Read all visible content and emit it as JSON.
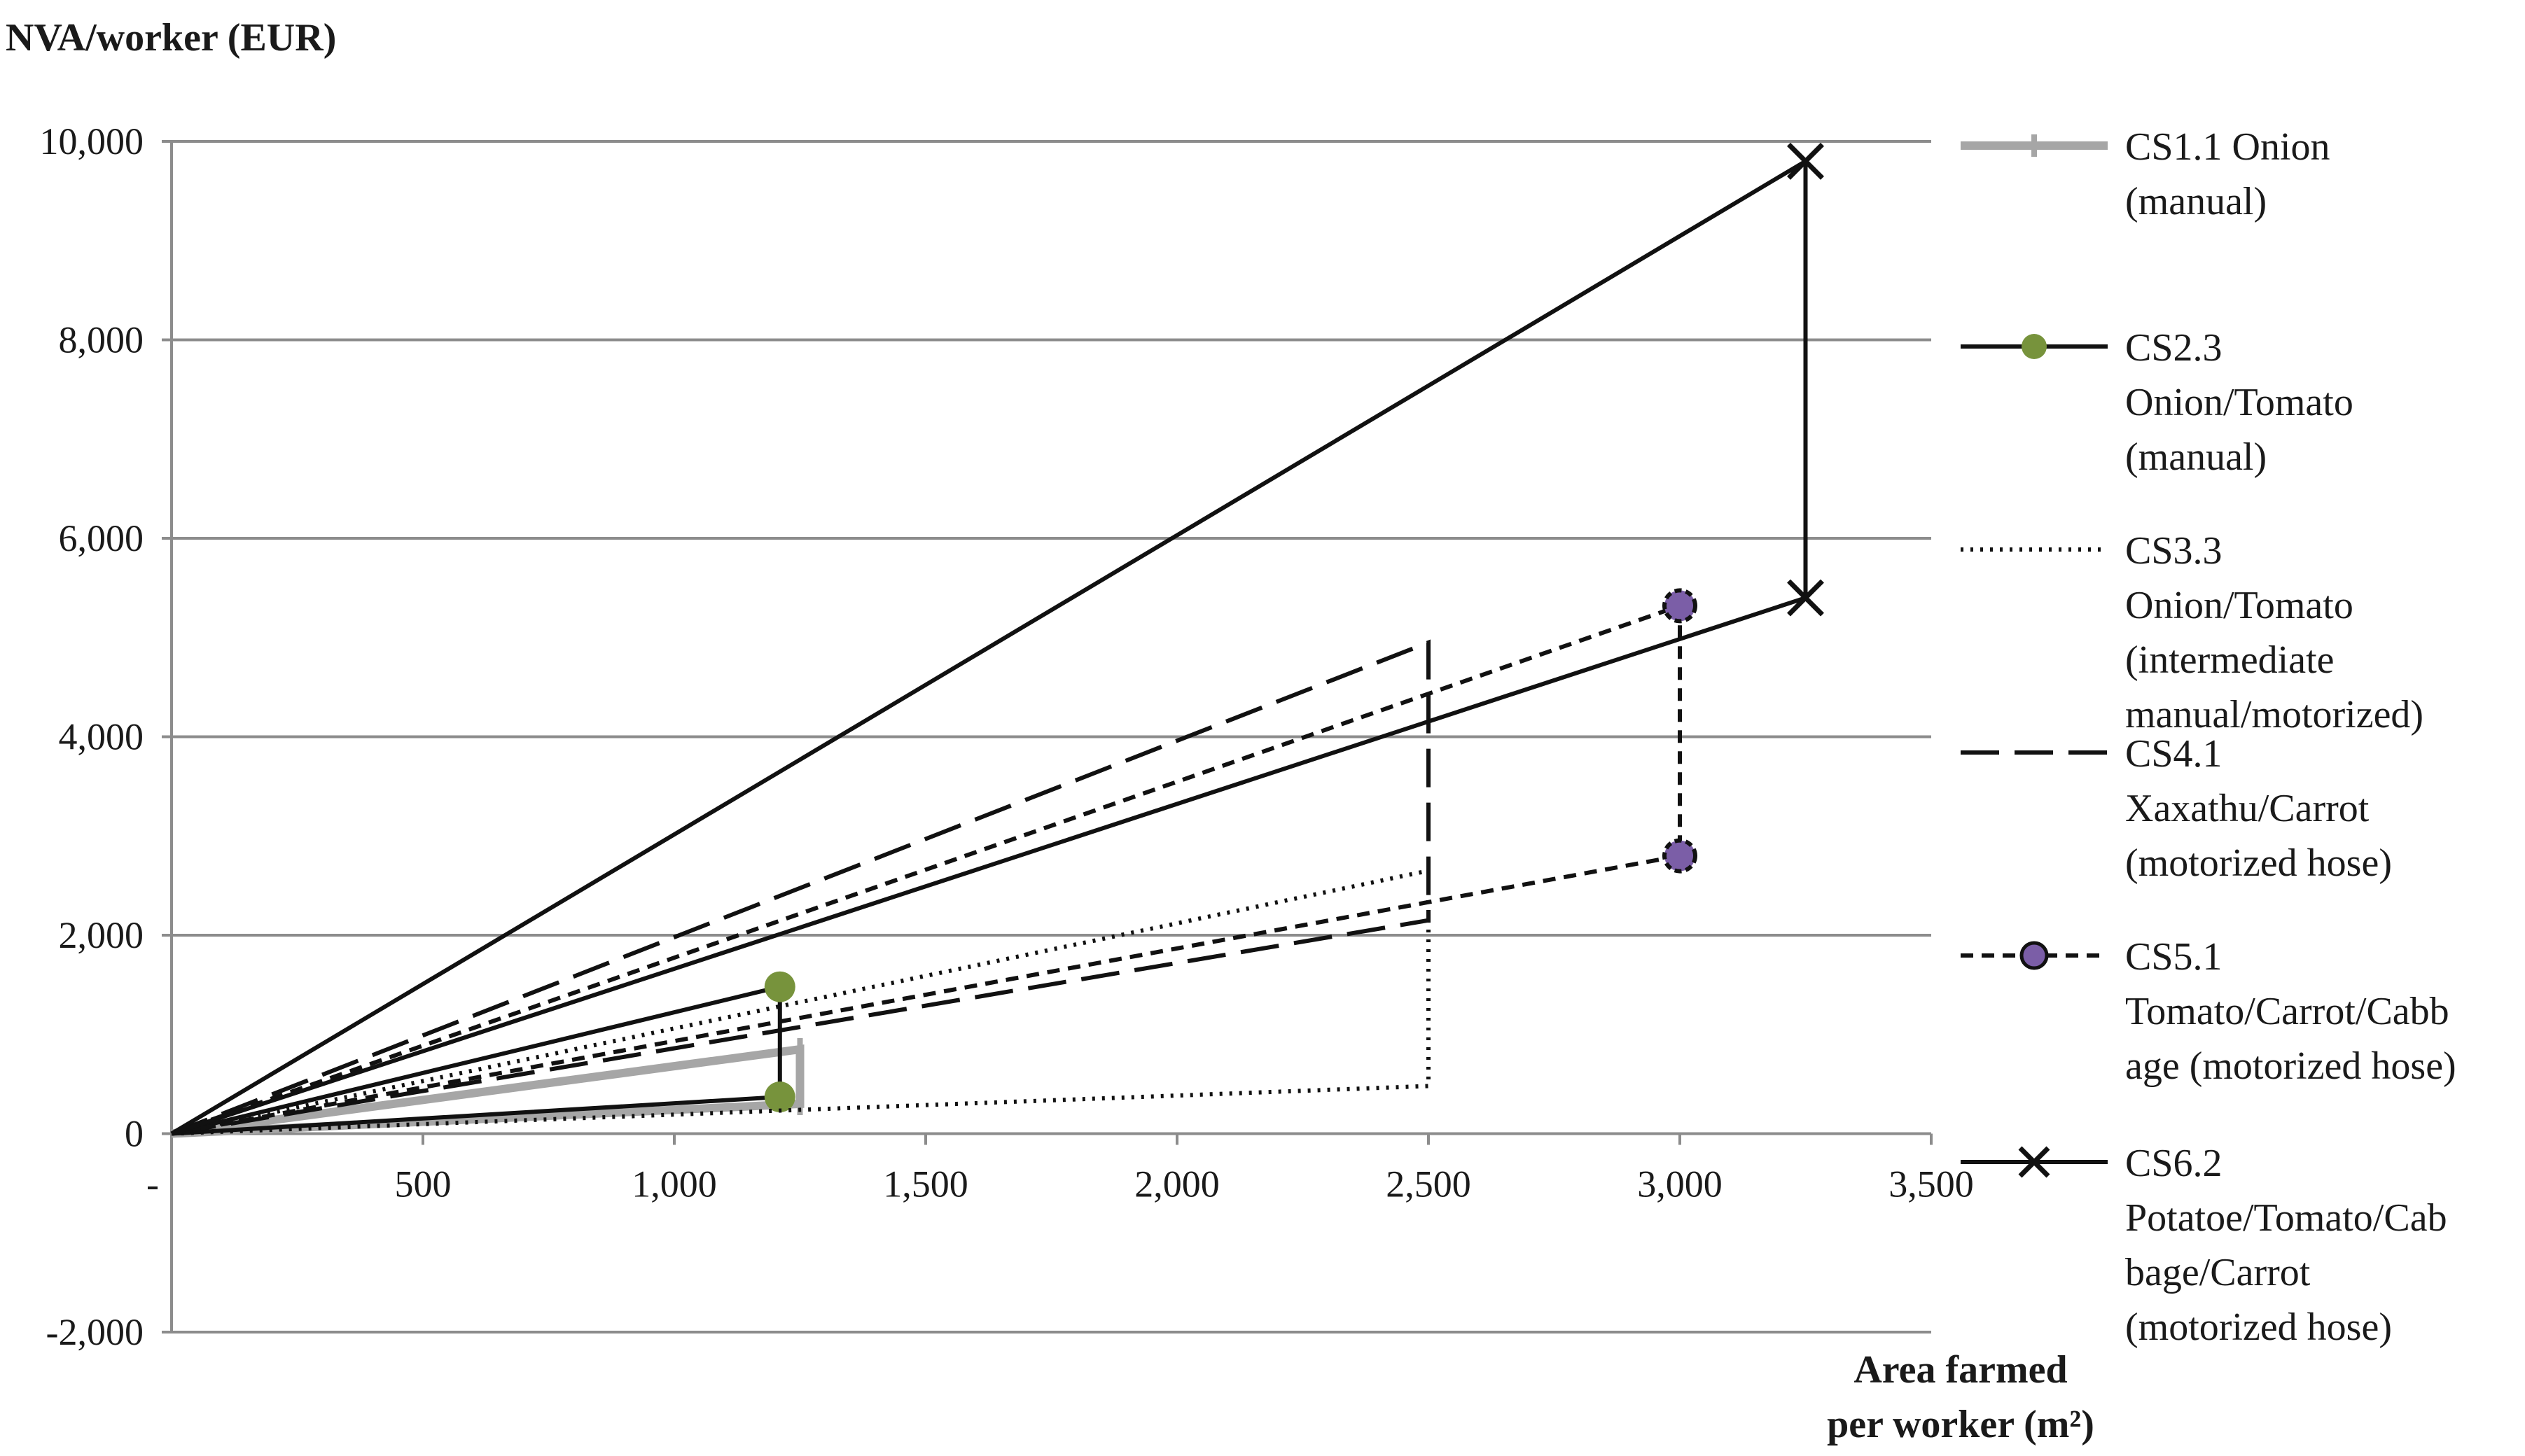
{
  "chart_data": {
    "type": "line",
    "ylabel": "NVA/worker (EUR)",
    "xlabel": [
      "Area farmed",
      "per worker (m²)"
    ],
    "xlim": [
      0,
      3500
    ],
    "ylim": [
      -2000,
      10000
    ],
    "x_ticks": [
      0,
      500,
      1000,
      1500,
      2000,
      2500,
      3000,
      3500
    ],
    "x_tick_labels": [
      "-",
      "500",
      "1,000",
      "1,500",
      "2,000",
      "2,500",
      "3,000",
      "3,500"
    ],
    "y_ticks": [
      -2000,
      0,
      2000,
      4000,
      6000,
      8000,
      10000
    ],
    "y_tick_labels": [
      "-2,000",
      "0",
      "2,000",
      "4,000",
      "6,000",
      "8,000",
      "10,000"
    ],
    "grid": "horizontal",
    "legend_position": "right",
    "series": [
      {
        "name": [
          "CS1.1 Onion",
          "(manual)"
        ],
        "color": "#a6a6a6",
        "dash": "solid",
        "marker": "plus",
        "points": [
          [
            0,
            0
          ],
          [
            1250,
            850
          ],
          [
            1250,
            300
          ],
          [
            0,
            0
          ]
        ]
      },
      {
        "name": [
          "CS2.3",
          "Onion/Tomato",
          "(manual)"
        ],
        "color": "#111111",
        "dash": "solid",
        "marker": "circle",
        "marker_color": "#77933c",
        "points": [
          [
            0,
            0
          ],
          [
            1210,
            1480
          ],
          [
            1210,
            370
          ],
          [
            0,
            0
          ]
        ]
      },
      {
        "name": [
          "CS3.3",
          "Onion/Tomato",
          "(intermediate",
          "manual/motorized)"
        ],
        "color": "#111111",
        "dash": "dotted",
        "marker": "none",
        "points": [
          [
            0,
            0
          ],
          [
            2500,
            2650
          ],
          [
            2500,
            480
          ],
          [
            0,
            0
          ]
        ]
      },
      {
        "name": [
          "CS4.1",
          "Xaxathu/Carrot",
          "(motorized hose)"
        ],
        "color": "#111111",
        "dash": "longdash",
        "marker": "none",
        "points": [
          [
            0,
            0
          ],
          [
            2500,
            4950
          ],
          [
            2500,
            2150
          ],
          [
            0,
            0
          ]
        ]
      },
      {
        "name": [
          "CS5.1",
          "Tomato/Carrot/Cabb",
          "age (motorized hose)"
        ],
        "color": "#111111",
        "dash": "shortdash",
        "marker": "circle",
        "marker_color": "#7b5ea7",
        "points": [
          [
            0,
            0
          ],
          [
            3000,
            5320
          ],
          [
            3000,
            2800
          ],
          [
            0,
            0
          ]
        ]
      },
      {
        "name": [
          "CS6.2",
          "Potatoe/Tomato/Cab",
          "bage/Carrot",
          "(motorized hose)"
        ],
        "color": "#111111",
        "dash": "solid",
        "marker": "x",
        "points": [
          [
            0,
            0
          ],
          [
            3250,
            9800
          ],
          [
            3250,
            5400
          ],
          [
            0,
            0
          ]
        ]
      }
    ]
  }
}
